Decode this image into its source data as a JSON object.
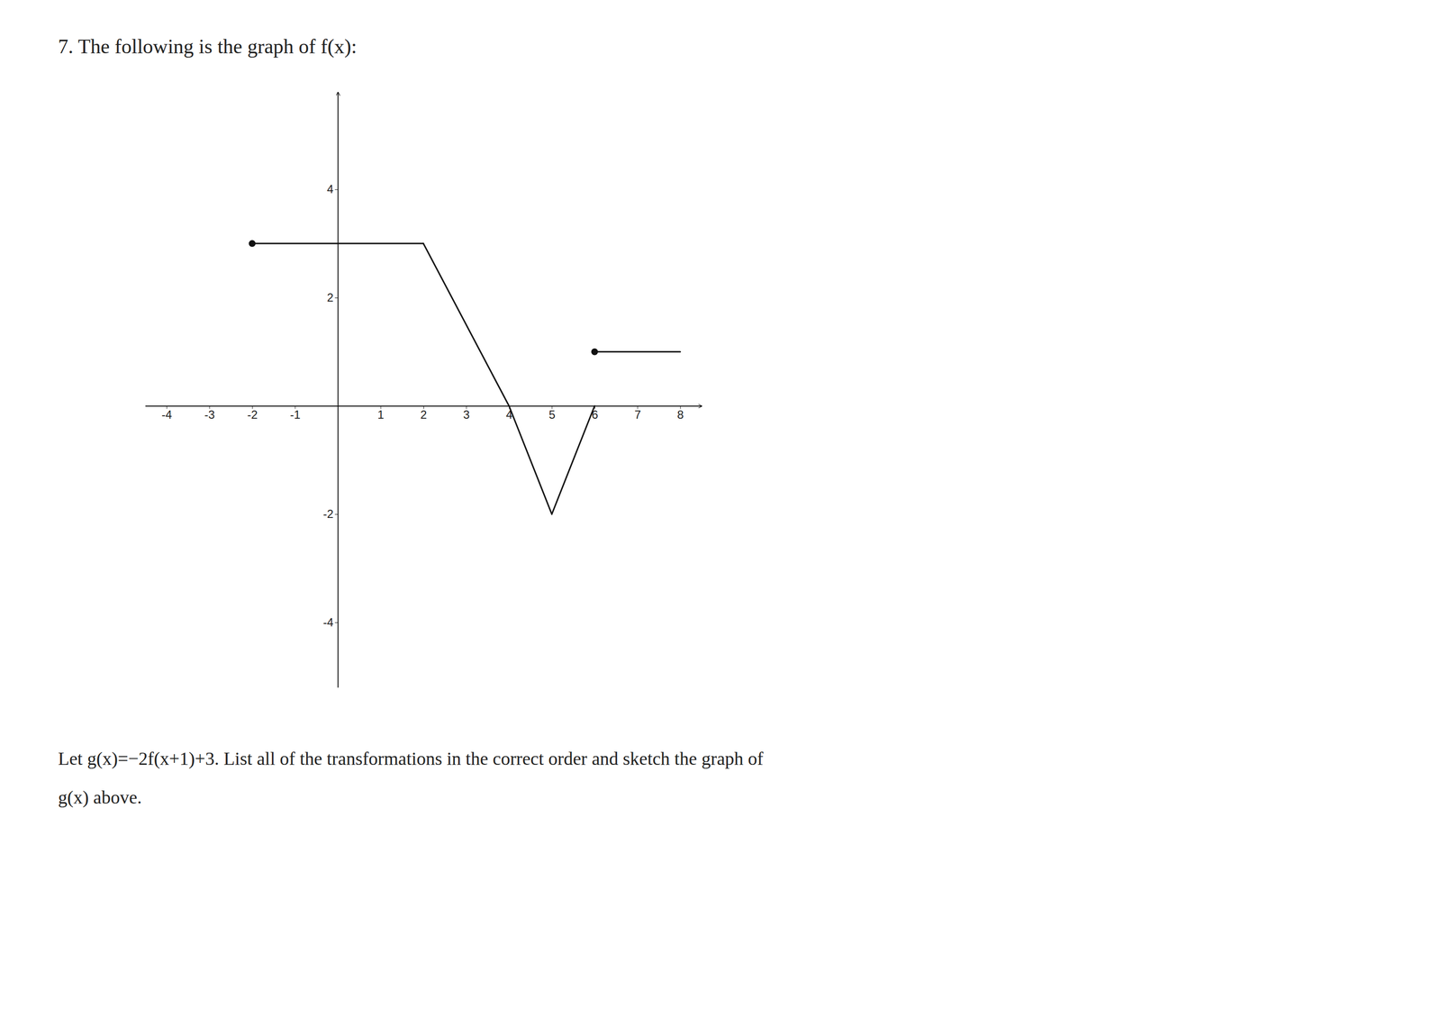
{
  "chart_data": {
    "type": "line",
    "title": "7.   The following is the graph of f(x):",
    "annotations": [
      "Let g(x)=−2f(x+1)+3. List all of the transformations in the correct order and sketch the graph of",
      "g(x) above."
    ],
    "xlim": [
      -4.5,
      8.5
    ],
    "ylim": [
      -5.2,
      5.8
    ],
    "xticks": [
      -4,
      -3,
      -2,
      -1,
      1,
      2,
      3,
      4,
      5,
      6,
      7,
      8
    ],
    "yticks": [
      -4,
      -2,
      2,
      4
    ],
    "grid": false,
    "color": "#111111",
    "series": [
      {
        "type": "line",
        "color": "#111111",
        "x": [
          -2,
          2
        ],
        "values": [
          3,
          3
        ]
      },
      {
        "type": "line",
        "color": "#111111",
        "x": [
          2,
          4
        ],
        "values": [
          3,
          0
        ]
      },
      {
        "type": "line",
        "color": "#111111",
        "x": [
          4,
          5
        ],
        "values": [
          0,
          -2
        ]
      },
      {
        "type": "line",
        "color": "#111111",
        "x": [
          5,
          6
        ],
        "values": [
          -2,
          0
        ]
      },
      {
        "type": "line",
        "color": "#111111",
        "x": [
          6,
          8
        ],
        "values": [
          1,
          1
        ]
      },
      {
        "type": "scatter",
        "marker": "circle",
        "color": "#111111",
        "x": [
          -2,
          6
        ],
        "values": [
          3,
          1
        ]
      }
    ]
  }
}
